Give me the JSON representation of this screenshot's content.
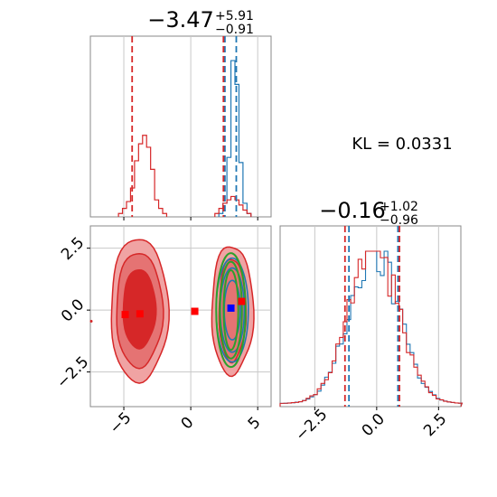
{
  "chart_data": [
    {
      "type": "histogram",
      "panel": "x-marginal",
      "title_main": "−3.47",
      "title_sup": "+5.91",
      "title_sub": "−0.91",
      "xlim": [
        -7.5,
        6.0
      ],
      "gridlines_x": [
        -5,
        0,
        5
      ],
      "bin_width": 0.3,
      "series": [
        {
          "name": "",
          "color": "#1f77b4",
          "bins": [
            [
              2.1,
              0.02
            ],
            [
              2.4,
              0.08
            ],
            [
              2.7,
              0.35
            ],
            [
              3.0,
              0.92
            ],
            [
              3.3,
              0.78
            ],
            [
              3.6,
              0.32
            ],
            [
              3.9,
              0.08
            ],
            [
              4.2,
              0.02
            ]
          ],
          "dashed": [
            2.55,
            3.4
          ]
        },
        {
          "name": "",
          "color": "#d62728",
          "bins": [
            [
              -5.4,
              0.02
            ],
            [
              -5.1,
              0.05
            ],
            [
              -4.8,
              0.09
            ],
            [
              -4.5,
              0.17
            ],
            [
              -4.2,
              0.33
            ],
            [
              -3.9,
              0.43
            ],
            [
              -3.6,
              0.48
            ],
            [
              -3.3,
              0.41
            ],
            [
              -3.0,
              0.28
            ],
            [
              -2.7,
              0.1
            ],
            [
              -2.4,
              0.05
            ],
            [
              -2.1,
              0.02
            ],
            [
              1.8,
              0.02
            ],
            [
              2.1,
              0.05
            ],
            [
              2.4,
              0.08
            ],
            [
              2.7,
              0.1
            ],
            [
              3.0,
              0.12
            ],
            [
              3.3,
              0.1
            ],
            [
              3.6,
              0.07
            ],
            [
              3.9,
              0.04
            ],
            [
              4.2,
              0.02
            ]
          ],
          "dashed": [
            -4.38,
            2.44
          ]
        }
      ]
    },
    {
      "type": "scatter-contour",
      "panel": "joint",
      "xlim": [
        -7.5,
        6.0
      ],
      "ylim": [
        -3.9,
        3.4
      ],
      "x_ticks": [
        "−5",
        "0",
        "5"
      ],
      "y_ticks": [
        "2.5",
        "0.0",
        "−2.5"
      ],
      "red_markers": [
        [
          -4.9,
          -0.18
        ],
        [
          -3.8,
          -0.15
        ],
        [
          0.3,
          -0.05
        ],
        [
          3.8,
          0.35
        ]
      ],
      "blue_markers": [
        [
          3.0,
          0.08
        ]
      ],
      "red_contours": [
        {
          "cx": -3.85,
          "cy": 0.0,
          "rx": 3.7,
          "ry": 2.9
        },
        {
          "cx": 3.1,
          "cy": 0.0,
          "rx": 2.4,
          "ry": 2.6
        }
      ],
      "blue_contours": [
        {
          "cx": 3.1,
          "cy": 0.0,
          "rx": 0.75,
          "ry": 2.0
        }
      ],
      "green_contours": [
        {
          "cx": 3.0,
          "cy": 0.0,
          "rx": 1.1,
          "ry": 2.3
        }
      ]
    },
    {
      "type": "histogram",
      "panel": "y-marginal",
      "title_main": "−0.16",
      "title_sup": "+1.02",
      "title_sub": "−0.96",
      "xlim": [
        -3.9,
        3.4
      ],
      "x_ticks": [
        "−2.5",
        "0.0",
        "2.5"
      ],
      "series": [
        {
          "name": "",
          "color": "#1f77b4",
          "dashed": [
            -1.12,
            0.86
          ]
        },
        {
          "name": "",
          "color": "#d62728",
          "dashed": [
            -1.28,
            0.92
          ]
        }
      ]
    }
  ],
  "annotation": {
    "kl_text": "KL = 0.0331"
  }
}
